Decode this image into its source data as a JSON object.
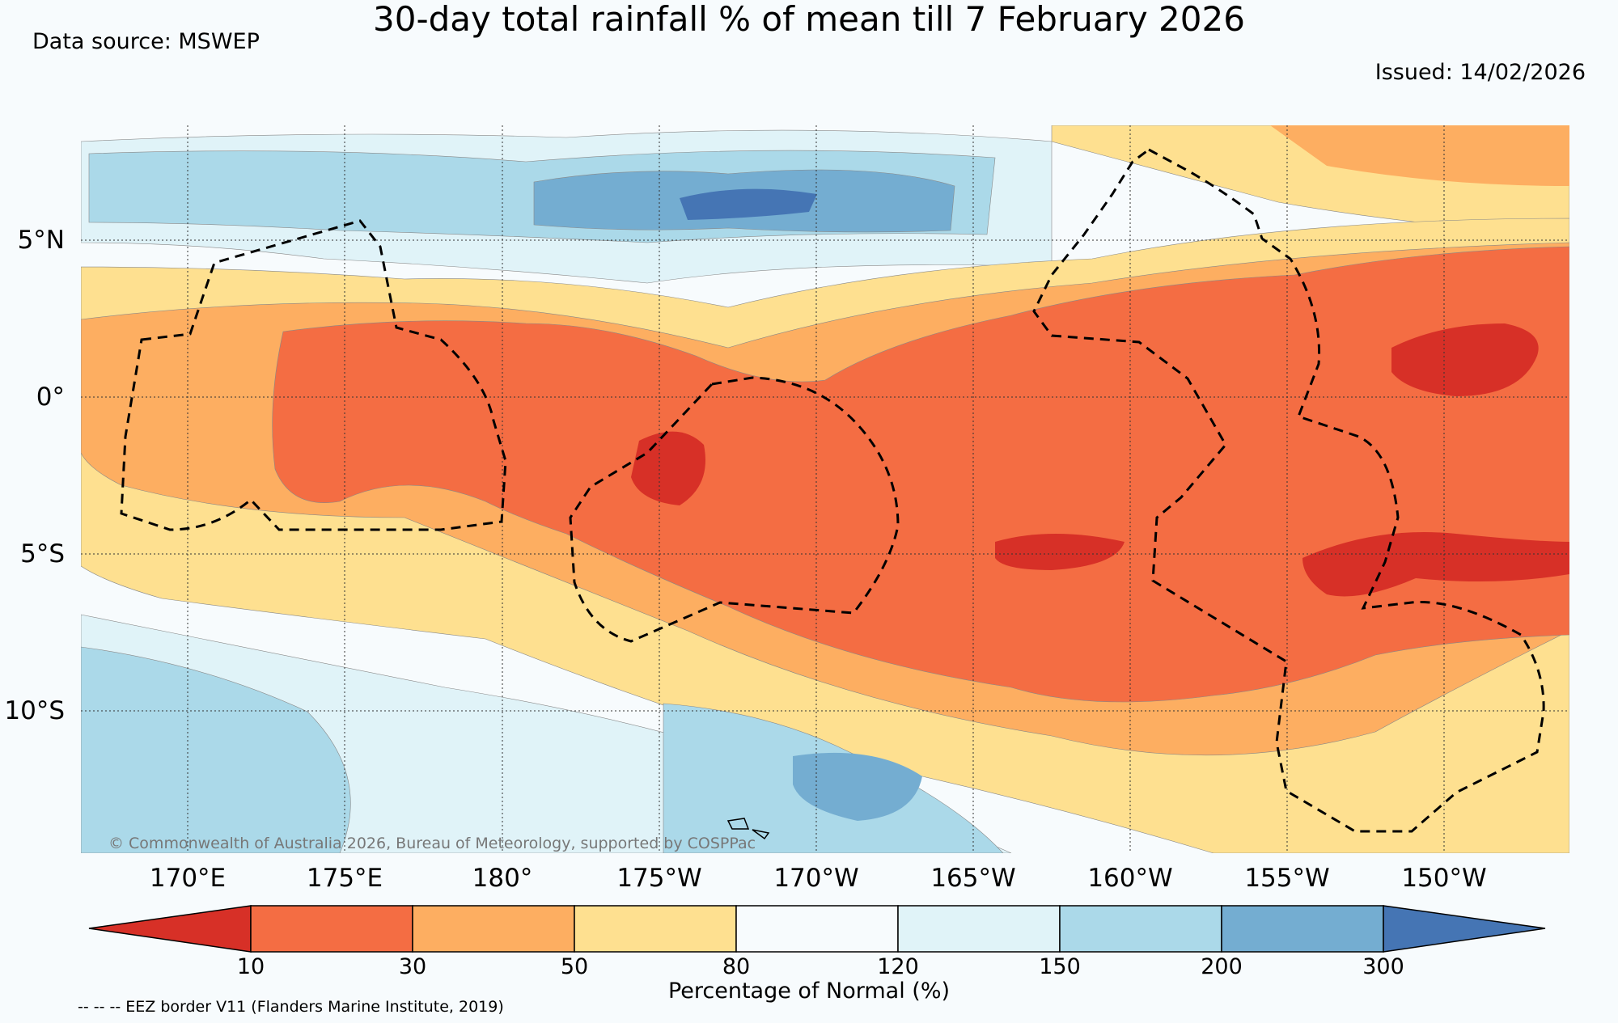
{
  "title": "30-day total rainfall % of mean till 7 February 2026",
  "source": "Data source: MSWEP",
  "issued": "Issued: 14/02/2026",
  "copyright": "© Commonwealth of Australia 2026, Bureau of Meteorology, supported by COSPPac",
  "eez_note": "-- -- -- EEZ border V11 (Flanders Marine Institute, 2019)",
  "map": {
    "lon_labels": [
      "170°E",
      "175°E",
      "180°",
      "175°W",
      "170°W",
      "165°W",
      "160°W",
      "155°W",
      "150°W"
    ],
    "lat_labels": [
      "5°N",
      "0°",
      "5°S",
      "10°S"
    ]
  },
  "colorbar": {
    "label": "Percentage of Normal (%)",
    "ticks": [
      "10",
      "30",
      "50",
      "80",
      "120",
      "150",
      "200",
      "300"
    ],
    "colors": [
      "#d73027",
      "#f46d43",
      "#fdae61",
      "#fee090",
      "#f7fbfd",
      "#e0f3f8",
      "#abd9e9",
      "#74add1",
      "#4575b4"
    ]
  }
}
